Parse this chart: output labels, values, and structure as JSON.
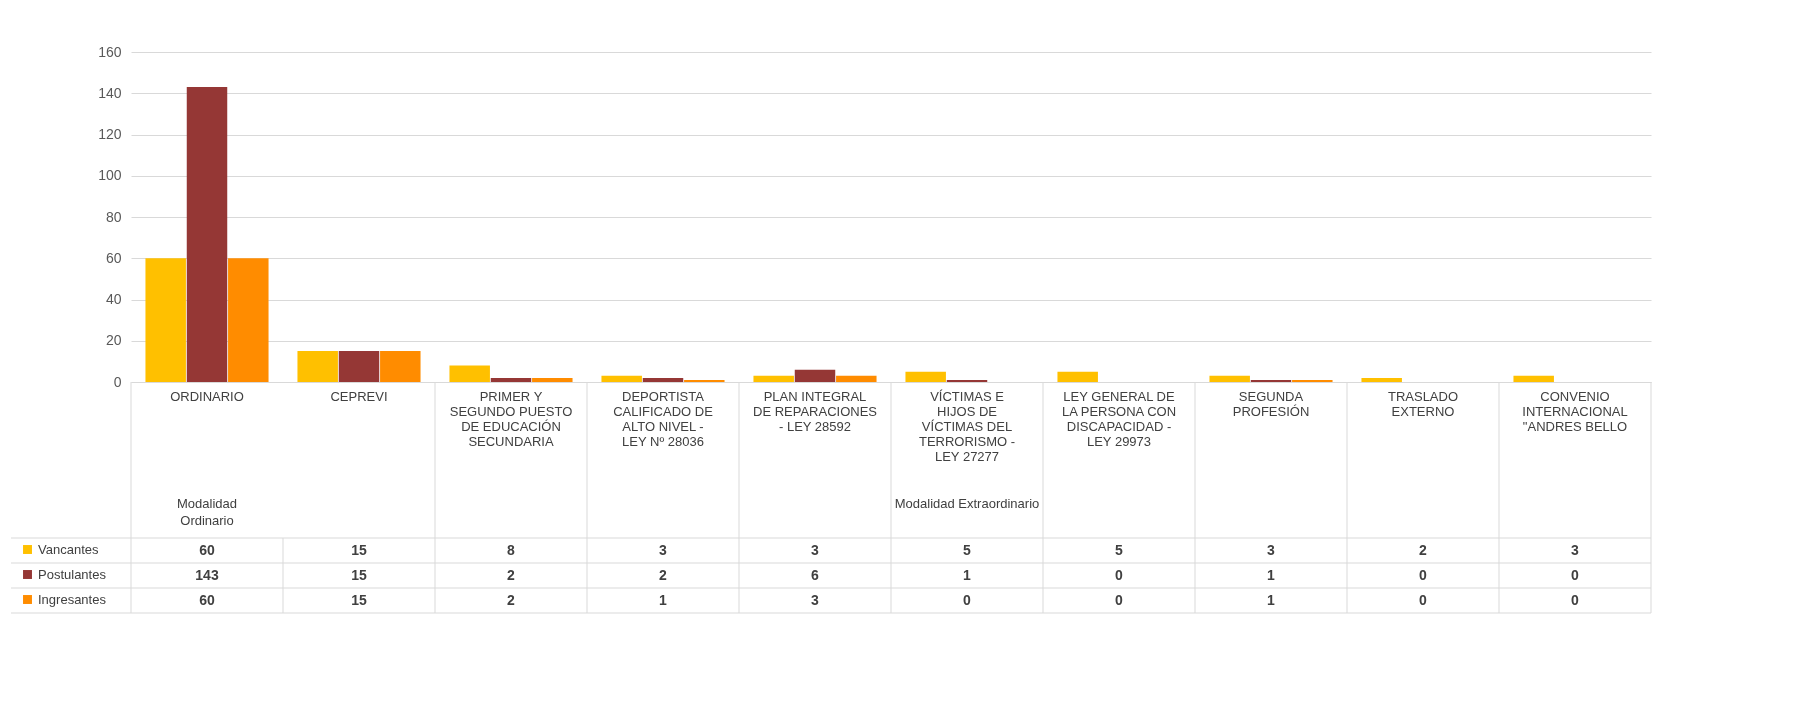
{
  "chart_data": {
    "type": "bar",
    "categories": [
      "ORDINARIO",
      "CEPREVI",
      "PRIMER Y SEGUNDO PUESTO DE EDUCACIÓN SECUNDARIA",
      "DEPORTISTA CALIFICADO DE ALTO NIVEL - LEY Nº 28036",
      "PLAN INTEGRAL DE REPARACIONES - LEY 28592",
      "VÍCTIMAS E HIJOS DE VÍCTIMAS DEL TERRORISMO - LEY 27277",
      "LEY GENERAL DE LA PERSONA CON DISCAPACIDAD - LEY 29973",
      "SEGUNDA PROFESIÓN",
      "TRASLADO EXTERNO",
      "CONVENIO INTERNACIONAL \"ANDRES BELLO"
    ],
    "series": [
      {
        "name": "Vancantes",
        "color": "#ffc000",
        "values": [
          60,
          15,
          8,
          3,
          3,
          5,
          5,
          3,
          2,
          3
        ]
      },
      {
        "name": "Postulantes",
        "color": "#953735",
        "values": [
          143,
          15,
          2,
          2,
          6,
          1,
          0,
          1,
          0,
          0
        ]
      },
      {
        "name": "Ingresantes",
        "color": "#ff8c00",
        "values": [
          60,
          15,
          2,
          1,
          3,
          0,
          0,
          1,
          0,
          0
        ]
      }
    ],
    "annotations": [
      "Modalidad Ordinario",
      "Modalidad Extraordinario"
    ],
    "ylim": [
      0,
      160
    ],
    "yticks": [
      0,
      20,
      40,
      60,
      80,
      100,
      120,
      140,
      160
    ],
    "grid": "y",
    "legend": "bottom left",
    "data_labels": true
  }
}
